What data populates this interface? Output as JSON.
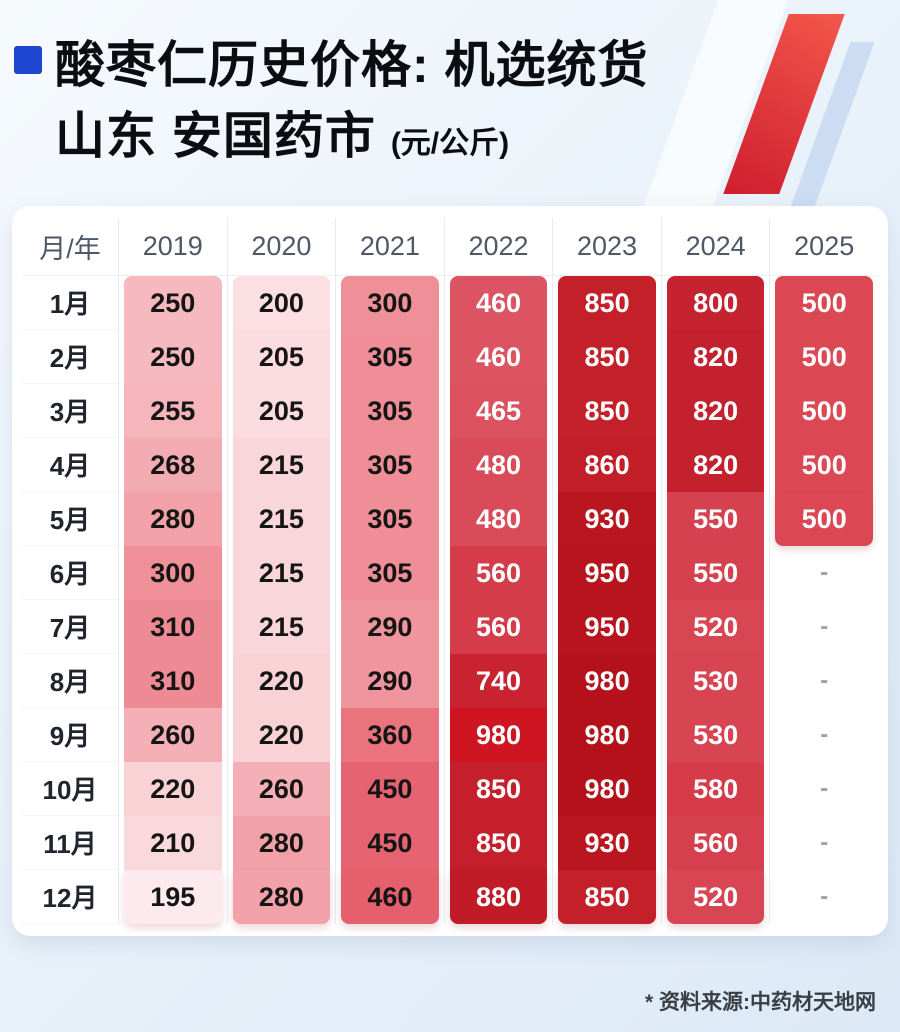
{
  "header": {
    "title_line1": "酸枣仁历史价格: 机选统货",
    "title_line2": "山东 安国药市",
    "unit": "(元/公斤)"
  },
  "table": {
    "corner_label": "月/年",
    "null_display": "-"
  },
  "chart_data": {
    "type": "heatmap",
    "title": "酸枣仁历史价格: 机选统货 山东 安国药市 (元/公斤)",
    "unit": "元/公斤",
    "x": [
      "2019",
      "2020",
      "2021",
      "2022",
      "2023",
      "2024",
      "2025"
    ],
    "y": [
      "1月",
      "2月",
      "3月",
      "4月",
      "5月",
      "6月",
      "7月",
      "8月",
      "9月",
      "10月",
      "11月",
      "12月"
    ],
    "values": [
      [
        250,
        200,
        300,
        460,
        850,
        800,
        500
      ],
      [
        250,
        205,
        305,
        460,
        850,
        820,
        500
      ],
      [
        255,
        205,
        305,
        465,
        850,
        820,
        500
      ],
      [
        268,
        215,
        305,
        480,
        860,
        820,
        500
      ],
      [
        280,
        215,
        305,
        480,
        930,
        550,
        500
      ],
      [
        300,
        215,
        305,
        560,
        950,
        550,
        null
      ],
      [
        310,
        215,
        290,
        560,
        950,
        520,
        null
      ],
      [
        310,
        220,
        290,
        740,
        980,
        530,
        null
      ],
      [
        260,
        220,
        360,
        980,
        980,
        530,
        null
      ],
      [
        220,
        260,
        450,
        850,
        980,
        580,
        null
      ],
      [
        210,
        280,
        450,
        850,
        930,
        560,
        null
      ],
      [
        195,
        280,
        460,
        880,
        850,
        520,
        null
      ]
    ],
    "source": "* 资料来源:中药材天地网"
  },
  "style": {
    "accent_blue": "#1d45cf",
    "ribbon_red_top": "#f2574b",
    "ribbon_red_bottom": "#cf1e2e",
    "ribbon_blue": "#ccdcf3",
    "dark_text": "#151515",
    "light_text": "#ffffff",
    "dash_text": "#9aa2ac",
    "dark_text_cols": 3,
    "cell_bg": [
      [
        "#f6b9bf",
        "#fbdfe3",
        "#ef9099",
        "#dc5362",
        "#c32029",
        "#c62330",
        "#db4854"
      ],
      [
        "#f6b9bf",
        "#fbdce0",
        "#ef8e97",
        "#dc5362",
        "#c32029",
        "#c4212e",
        "#db4854"
      ],
      [
        "#f5b5bb",
        "#fbdce0",
        "#ef8e97",
        "#db515f",
        "#c32029",
        "#c4212e",
        "#db4854"
      ],
      [
        "#f3abb2",
        "#f9d6da",
        "#ef8e97",
        "#d94b59",
        "#c21e28",
        "#c4212e",
        "#db4854"
      ],
      [
        "#f2a1a9",
        "#f9d6da",
        "#ef8e97",
        "#d94b59",
        "#ba161f",
        "#d64150",
        "#db4854"
      ],
      [
        "#ef9099",
        "#f9d6da",
        "#ef8e97",
        "#d43c4a",
        "#b8141d",
        "#d64150",
        null
      ],
      [
        "#ee8a93",
        "#f9d6da",
        "#f0959e",
        "#d43c4a",
        "#b8141d",
        "#d84553",
        null
      ],
      [
        "#ee8a93",
        "#f9d2d6",
        "#f0959e",
        "#c92230",
        "#b5111b",
        "#d74452",
        null
      ],
      [
        "#f4b0b6",
        "#f9d2d6",
        "#ea737e",
        "#cf1522",
        "#b5111b",
        "#d74452",
        null
      ],
      [
        "#f9d2d6",
        "#f4b0b6",
        "#e66471",
        "#c41f2a",
        "#b5111b",
        "#d53b49",
        null
      ],
      [
        "#fad9dd",
        "#f2a1a9",
        "#e66471",
        "#c41f2a",
        "#ba161f",
        "#d63f4d",
        null
      ],
      [
        "#fdeaee",
        "#f2a1a9",
        "#e55f6c",
        "#c01b26",
        "#c32029",
        "#d84553",
        null
      ]
    ]
  },
  "footer": {
    "source": "* 资料来源:中药材天地网"
  }
}
